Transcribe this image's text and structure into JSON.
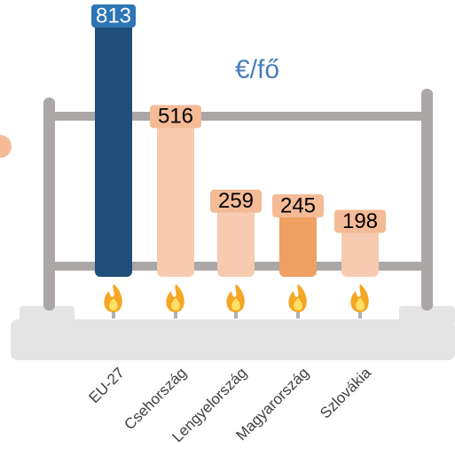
{
  "chart_data": {
    "type": "bar",
    "unit_label": "€/fő",
    "categories": [
      "EU-27",
      "Csehország",
      "Lengyelország",
      "Magyarország",
      "Szlovákia"
    ],
    "values": [
      813,
      516,
      259,
      245,
      198
    ],
    "colors": [
      "#1f4e79",
      "#f6cbb0",
      "#f6cbb0",
      "#eea062",
      "#f6cbb0"
    ],
    "label_box_colors": [
      "#2e75b6",
      "#f4bb96",
      "#f4bb96",
      "#f4bb96",
      "#f4bb96"
    ],
    "label_text_colors": [
      "#ffffff",
      "#000000",
      "#000000",
      "#000000",
      "#000000"
    ]
  }
}
